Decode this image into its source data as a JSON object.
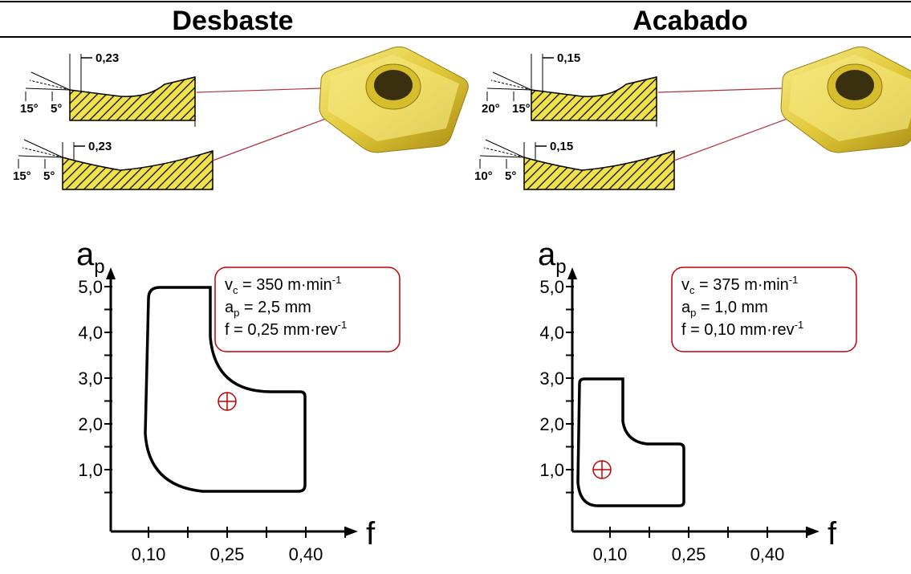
{
  "header": {
    "left_title": "Desbaste",
    "right_title": "Acabado"
  },
  "panels": [
    {
      "top_dim": "0,23",
      "top_angles": [
        "15°",
        "5°"
      ],
      "bottom_dim": "0,23",
      "bottom_angles": [
        "15°",
        "5°"
      ],
      "chart": {
        "y_label": "a",
        "y_label_sub": "p",
        "x_label": "f",
        "yticks": [
          "1,0",
          "2,0",
          "3,0",
          "4,0",
          "5,0"
        ],
        "xticks": [
          "0,10",
          "0,25",
          "0,40"
        ],
        "info": [
          {
            "main": "v",
            "sub": "c",
            "text": " = 350 m·min",
            "sup": "-1"
          },
          {
            "main": "a",
            "sub": "p",
            "text": " = 2,5 mm"
          },
          {
            "main": "f = 0,25 mm·rev",
            "sup": "-1"
          }
        ]
      }
    },
    {
      "top_dim": "0,15",
      "top_angles": [
        "20°",
        "15°"
      ],
      "bottom_dim": "0,15",
      "bottom_angles": [
        "10°",
        "5°"
      ],
      "chart": {
        "y_label": "a",
        "y_label_sub": "p",
        "x_label": "f",
        "yticks": [
          "1,0",
          "2,0",
          "3,0",
          "4,0",
          "5,0"
        ],
        "xticks": [
          "0,10",
          "0,25",
          "0,40"
        ],
        "info": [
          {
            "main": "v",
            "sub": "c",
            "text": " = 375 m·min",
            "sup": "-1"
          },
          {
            "main": "a",
            "sub": "p",
            "text": " = 1,0 mm"
          },
          {
            "main": "f = 0,10 mm·rev",
            "sup": "-1"
          }
        ]
      }
    }
  ]
}
